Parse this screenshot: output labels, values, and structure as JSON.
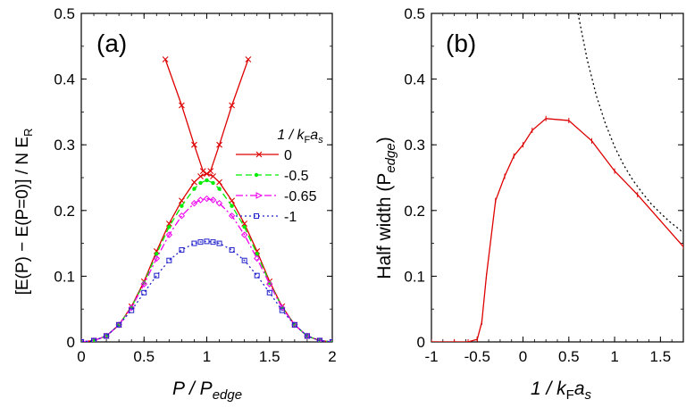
{
  "chart_data": [
    {
      "type": "line",
      "panel_label": "(a)",
      "xlabel_main": "P / P",
      "xlabel_sub": "edge",
      "ylabel": "[E(P) − E(P=0)] / N E",
      "ylabel_sub": "R",
      "xlim": [
        0,
        2
      ],
      "ylim": [
        0,
        0.5
      ],
      "xticks": [
        "0",
        "0.5",
        "1",
        "1.5",
        "2"
      ],
      "yticks": [
        "0",
        "0.1",
        "0.2",
        "0.3",
        "0.4",
        "0.5"
      ],
      "legend_title": "1 / k",
      "legend_title_sub": "F",
      "legend_title_tail": "a",
      "legend_title_tail_sub": "s",
      "series": [
        {
          "name": "0",
          "color": "#dd0000",
          "dash": "solid",
          "marker": "x",
          "segments": [
            {
              "x": [
                0,
                0.1,
                0.2,
                0.3,
                0.4,
                0.5,
                0.6,
                0.7,
                0.8,
                0.9,
                0.95,
                1.0,
                1.05,
                1.1,
                1.2,
                1.3,
                1.4,
                1.5,
                1.6,
                1.7,
                1.8,
                1.9,
                2.0
              ],
              "y": [
                0,
                0.002,
                0.009,
                0.026,
                0.054,
                0.092,
                0.138,
                0.18,
                0.215,
                0.243,
                0.252,
                0.256,
                0.252,
                0.243,
                0.215,
                0.18,
                0.138,
                0.092,
                0.054,
                0.026,
                0.009,
                0.002,
                0
              ]
            },
            {
              "x": [
                0.67,
                0.8,
                0.9,
                0.97
              ],
              "y": [
                0.43,
                0.36,
                0.3,
                0.26
              ]
            },
            {
              "x": [
                1.03,
                1.1,
                1.2,
                1.33
              ],
              "y": [
                0.26,
                0.3,
                0.36,
                0.43
              ]
            }
          ]
        },
        {
          "name": "-0.5",
          "color": "#00ee00",
          "dash": "dashed",
          "marker": "dot",
          "segments": [
            {
              "x": [
                0,
                0.1,
                0.2,
                0.3,
                0.4,
                0.5,
                0.6,
                0.7,
                0.8,
                0.9,
                0.95,
                1.0,
                1.05,
                1.1,
                1.2,
                1.3,
                1.4,
                1.5,
                1.6,
                1.7,
                1.8,
                1.9,
                2.0
              ],
              "y": [
                0,
                0.002,
                0.009,
                0.026,
                0.053,
                0.09,
                0.134,
                0.175,
                0.207,
                0.233,
                0.242,
                0.246,
                0.242,
                0.233,
                0.207,
                0.175,
                0.134,
                0.09,
                0.053,
                0.026,
                0.009,
                0.002,
                0
              ]
            }
          ]
        },
        {
          "name": "-0.65",
          "color": "#ee00ee",
          "dash": "dashdot",
          "marker": "diamond",
          "segments": [
            {
              "x": [
                0,
                0.1,
                0.2,
                0.3,
                0.4,
                0.5,
                0.6,
                0.7,
                0.8,
                0.9,
                0.95,
                1.0,
                1.05,
                1.1,
                1.2,
                1.3,
                1.4,
                1.5,
                1.6,
                1.7,
                1.8,
                1.9,
                2.0
              ],
              "y": [
                0,
                0.002,
                0.009,
                0.026,
                0.052,
                0.088,
                0.127,
                0.163,
                0.192,
                0.211,
                0.216,
                0.218,
                0.216,
                0.211,
                0.192,
                0.163,
                0.127,
                0.088,
                0.052,
                0.026,
                0.009,
                0.002,
                0
              ]
            }
          ]
        },
        {
          "name": "-1",
          "color": "#2222cc",
          "dash": "dotted",
          "marker": "square",
          "segments": [
            {
              "x": [
                0,
                0.1,
                0.2,
                0.3,
                0.4,
                0.5,
                0.6,
                0.7,
                0.8,
                0.9,
                0.95,
                1.0,
                1.05,
                1.1,
                1.2,
                1.3,
                1.4,
                1.5,
                1.6,
                1.7,
                1.8,
                1.9,
                2.0
              ],
              "y": [
                0,
                0.002,
                0.009,
                0.026,
                0.048,
                0.075,
                0.101,
                0.124,
                0.14,
                0.15,
                0.152,
                0.153,
                0.152,
                0.15,
                0.14,
                0.124,
                0.101,
                0.075,
                0.048,
                0.026,
                0.009,
                0.002,
                0
              ]
            }
          ]
        }
      ]
    },
    {
      "type": "line",
      "panel_label": "(b)",
      "xlabel_main": "1 / k",
      "xlabel_sub": "F",
      "xlabel_tail": "a",
      "xlabel_tail_sub": "s",
      "ylabel": "Half width  (P",
      "ylabel_sub": "edge",
      "ylabel_tail": ")",
      "xlim": [
        -1,
        1.75
      ],
      "ylim": [
        0,
        0.5
      ],
      "xticks": [
        "-1",
        "-0.5",
        "0",
        "0.5",
        "1",
        "1.5"
      ],
      "yticks": [
        "0",
        "0.1",
        "0.2",
        "0.3",
        "0.4",
        "0.5"
      ],
      "series": [
        {
          "color": "#dd0000",
          "dash": "solid",
          "marker": "tick",
          "x": [
            -1.0,
            -0.75,
            -0.6,
            -0.5,
            -0.45,
            -0.4,
            -0.3,
            -0.2,
            -0.1,
            0.0,
            0.1,
            0.25,
            0.5,
            0.75,
            1.0,
            1.25,
            1.75
          ],
          "y": [
            0,
            0,
            0,
            0.004,
            0.03,
            0.1,
            0.215,
            0.252,
            0.283,
            0.3,
            0.322,
            0.34,
            0.337,
            0.306,
            0.26,
            0.224,
            0.145
          ]
        },
        {
          "color": "#000000",
          "dash": "dotted",
          "marker": "none",
          "x": [
            0.6,
            0.7,
            0.8,
            0.9,
            1.0,
            1.1,
            1.2,
            1.3,
            1.4,
            1.5,
            1.6,
            1.7,
            1.75
          ],
          "y": [
            0.5,
            0.43,
            0.375,
            0.332,
            0.297,
            0.269,
            0.246,
            0.227,
            0.21,
            0.196,
            0.183,
            0.172,
            0.166
          ]
        }
      ]
    }
  ]
}
